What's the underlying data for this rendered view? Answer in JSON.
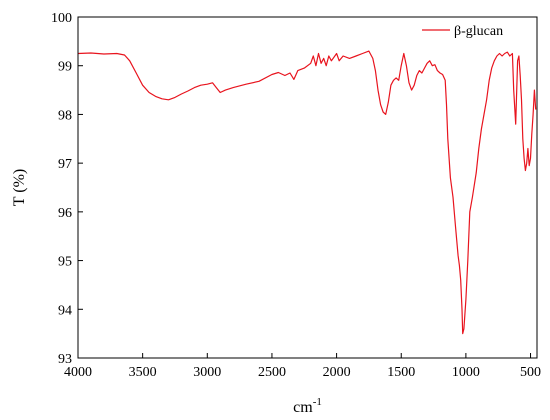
{
  "chart_data": {
    "type": "line",
    "xlabel": "cm",
    "xlabel_sup": "-1",
    "ylabel": "T (%)",
    "xlim": [
      4000,
      450
    ],
    "ylim": [
      93,
      100
    ],
    "x_reversed": true,
    "xticks": [
      4000,
      3500,
      3000,
      2500,
      2000,
      1500,
      1000,
      500
    ],
    "yticks": [
      93,
      94,
      95,
      96,
      97,
      98,
      99,
      100
    ],
    "grid": false,
    "legend_position": "top-right",
    "colors": {
      "series": "#e8141e",
      "axis": "#000000"
    },
    "series": [
      {
        "name": "β-glucan",
        "points": [
          [
            4000,
            99.25
          ],
          [
            3900,
            99.26
          ],
          [
            3800,
            99.24
          ],
          [
            3700,
            99.25
          ],
          [
            3640,
            99.22
          ],
          [
            3600,
            99.1
          ],
          [
            3550,
            98.85
          ],
          [
            3500,
            98.6
          ],
          [
            3450,
            98.45
          ],
          [
            3400,
            98.37
          ],
          [
            3350,
            98.32
          ],
          [
            3300,
            98.3
          ],
          [
            3250,
            98.35
          ],
          [
            3200,
            98.42
          ],
          [
            3150,
            98.48
          ],
          [
            3100,
            98.55
          ],
          [
            3050,
            98.6
          ],
          [
            3000,
            98.62
          ],
          [
            2960,
            98.65
          ],
          [
            2930,
            98.55
          ],
          [
            2900,
            98.45
          ],
          [
            2860,
            98.5
          ],
          [
            2800,
            98.55
          ],
          [
            2700,
            98.62
          ],
          [
            2600,
            98.68
          ],
          [
            2500,
            98.82
          ],
          [
            2450,
            98.86
          ],
          [
            2400,
            98.8
          ],
          [
            2360,
            98.85
          ],
          [
            2330,
            98.72
          ],
          [
            2300,
            98.9
          ],
          [
            2250,
            98.95
          ],
          [
            2200,
            99.05
          ],
          [
            2180,
            99.2
          ],
          [
            2160,
            99.0
          ],
          [
            2140,
            99.25
          ],
          [
            2120,
            99.05
          ],
          [
            2100,
            99.15
          ],
          [
            2080,
            99.0
          ],
          [
            2060,
            99.2
          ],
          [
            2040,
            99.1
          ],
          [
            2000,
            99.25
          ],
          [
            1980,
            99.1
          ],
          [
            1950,
            99.2
          ],
          [
            1900,
            99.15
          ],
          [
            1850,
            99.2
          ],
          [
            1800,
            99.25
          ],
          [
            1750,
            99.3
          ],
          [
            1720,
            99.15
          ],
          [
            1700,
            98.9
          ],
          [
            1680,
            98.5
          ],
          [
            1660,
            98.2
          ],
          [
            1640,
            98.05
          ],
          [
            1620,
            98.0
          ],
          [
            1600,
            98.25
          ],
          [
            1580,
            98.6
          ],
          [
            1560,
            98.7
          ],
          [
            1540,
            98.75
          ],
          [
            1520,
            98.7
          ],
          [
            1500,
            99.0
          ],
          [
            1480,
            99.25
          ],
          [
            1460,
            99.0
          ],
          [
            1440,
            98.65
          ],
          [
            1420,
            98.5
          ],
          [
            1400,
            98.6
          ],
          [
            1380,
            98.8
          ],
          [
            1360,
            98.9
          ],
          [
            1340,
            98.85
          ],
          [
            1320,
            98.95
          ],
          [
            1300,
            99.05
          ],
          [
            1280,
            99.1
          ],
          [
            1260,
            99.0
          ],
          [
            1240,
            99.02
          ],
          [
            1220,
            98.9
          ],
          [
            1200,
            98.85
          ],
          [
            1180,
            98.82
          ],
          [
            1160,
            98.7
          ],
          [
            1150,
            98.2
          ],
          [
            1140,
            97.5
          ],
          [
            1120,
            96.7
          ],
          [
            1100,
            96.3
          ],
          [
            1080,
            95.7
          ],
          [
            1060,
            95.1
          ],
          [
            1050,
            94.9
          ],
          [
            1040,
            94.6
          ],
          [
            1030,
            94.0
          ],
          [
            1025,
            93.5
          ],
          [
            1015,
            93.6
          ],
          [
            1000,
            94.2
          ],
          [
            985,
            95.0
          ],
          [
            970,
            96.0
          ],
          [
            950,
            96.3
          ],
          [
            920,
            96.8
          ],
          [
            900,
            97.3
          ],
          [
            880,
            97.7
          ],
          [
            860,
            98.0
          ],
          [
            840,
            98.3
          ],
          [
            820,
            98.7
          ],
          [
            800,
            98.95
          ],
          [
            780,
            99.1
          ],
          [
            760,
            99.2
          ],
          [
            740,
            99.25
          ],
          [
            720,
            99.2
          ],
          [
            700,
            99.25
          ],
          [
            680,
            99.28
          ],
          [
            660,
            99.2
          ],
          [
            640,
            99.25
          ],
          [
            630,
            98.5
          ],
          [
            615,
            97.8
          ],
          [
            600,
            99.1
          ],
          [
            590,
            99.2
          ],
          [
            580,
            98.8
          ],
          [
            570,
            98.3
          ],
          [
            560,
            97.5
          ],
          [
            550,
            97.1
          ],
          [
            540,
            96.85
          ],
          [
            530,
            97.0
          ],
          [
            520,
            97.3
          ],
          [
            510,
            96.95
          ],
          [
            500,
            97.1
          ],
          [
            490,
            97.6
          ],
          [
            480,
            98.0
          ],
          [
            470,
            98.5
          ],
          [
            460,
            98.1
          ]
        ]
      }
    ]
  }
}
